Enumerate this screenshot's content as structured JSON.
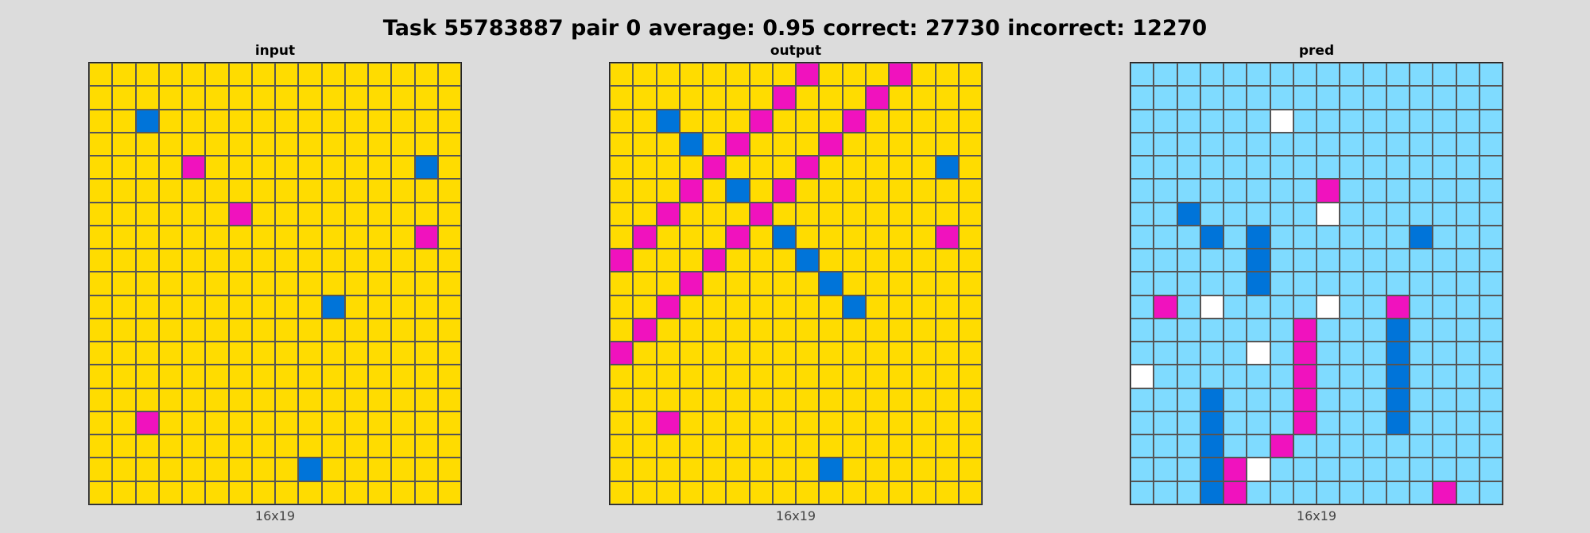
{
  "header": {
    "title": "Task 55783887 pair 0 average: 0.95 correct: 27730 incorrect: 12270"
  },
  "palette": {
    "Y": "#ffdc00",
    "M": "#f012be",
    "B": "#0074d9",
    "L": "#7fdbff",
    "W": "#ffffff"
  },
  "panels": [
    {
      "title": "input",
      "dim": "16x19",
      "rows": [
        "YYYYYYYYYYYYYYYY",
        "YYYYYYYYYYYYYYYY",
        "YYBYYYYYYYYYYYYY",
        "YYYYYYYYYYYYYYYY",
        "YYYYMYYYYYYYYYBY",
        "YYYYYYYYYYYYYYYY",
        "YYYYYYMYYYYYYYYY",
        "YYYYYYYYYYYYYYMY",
        "YYYYYYYYYYYYYYYY",
        "YYYYYYYYYYYYYYYY",
        "YYYYYYYYYYBYYYYY",
        "YYYYYYYYYYYYYYYY",
        "YYYYYYYYYYYYYYYY",
        "YYYYYYYYYYYYYYYY",
        "YYYYYYYYYYYYYYYY",
        "YYMYYYYYYYYYYYYY",
        "YYYYYYYYYYYYYYYY",
        "YYYYYYYYYBYYYYYY",
        "YYYYYYYYYYYYYYYY"
      ]
    },
    {
      "title": "output",
      "dim": "16x19",
      "rows": [
        "YYYYYYYYMYYYMYYY",
        "YYYYYYYMYYYMYYYY",
        "YYBYYYMYYYMYYYYY",
        "YYYBYMYYYMYYYYYY",
        "YYYYMYYYMYYYYYBY",
        "YYYMYBYMYYYYYYYY",
        "YYMYYYMYYYYYYYYY",
        "YMYYYMYBYYYYYYMY",
        "MYYYMYYYBYYYYYYY",
        "YYYMYYYYYBYYYYYY",
        "YYMYYYYYYYBYYYYY",
        "YMYYYYYYYYYYYYYY",
        "MYYYYYYYYYYYYYYY",
        "YYYYYYYYYYYYYYYY",
        "YYYYYYYYYYYYYYYY",
        "YYMYYYYYYYYYYYYY",
        "YYYYYYYYYYYYYYYY",
        "YYYYYYYYYBYYYYYY",
        "YYYYYYYYYYYYYYYY"
      ]
    },
    {
      "title": "pred",
      "dim": "16x19",
      "rows": [
        "LLLLLLLLLLLLLLLL",
        "LLLLLLLLLLLLLLLL",
        "LLLLLLWLLLLLLLLL",
        "LLLLLLLLLLLLLLLL",
        "LLLLLLLLLLLLLLLL",
        "LLLLLLLLMLLLLLLL",
        "LLBLLLLLWLLLLLLL",
        "LLLBLBLLLLLLBLLL",
        "LLLLLBLLLLLLLLLL",
        "LLLLLBLLLLLLLLLL",
        "LMLWLLLLWLLMLLLL",
        "LLLLLLLMLLLBLLLL",
        "LLLLLWLMLLLBLLLL",
        "WLLLLLLMLLLBLLLL",
        "LLLBLLLMLLLBLLLL",
        "LLLBLLLMLLLBLLLL",
        "LLLBLLMLLLLLLLLL",
        "LLLBMWLLLLLLLLLL",
        "LLLBMLLLLLLLLMLL"
      ]
    }
  ]
}
